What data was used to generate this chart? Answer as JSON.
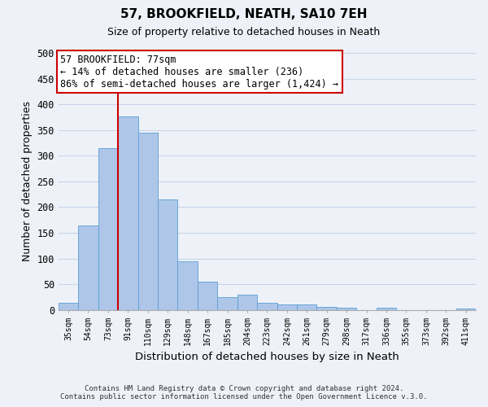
{
  "title": "57, BROOKFIELD, NEATH, SA10 7EH",
  "subtitle": "Size of property relative to detached houses in Neath",
  "xlabel": "Distribution of detached houses by size in Neath",
  "ylabel": "Number of detached properties",
  "bin_labels": [
    "35sqm",
    "54sqm",
    "73sqm",
    "91sqm",
    "110sqm",
    "129sqm",
    "148sqm",
    "167sqm",
    "185sqm",
    "204sqm",
    "223sqm",
    "242sqm",
    "261sqm",
    "279sqm",
    "298sqm",
    "317sqm",
    "336sqm",
    "355sqm",
    "373sqm",
    "392sqm",
    "411sqm"
  ],
  "bar_heights": [
    14,
    165,
    315,
    377,
    345,
    215,
    94,
    55,
    25,
    29,
    14,
    11,
    10,
    6,
    4,
    0,
    4,
    0,
    0,
    0,
    3
  ],
  "bar_color": "#aec6e8",
  "bar_edgecolor": "#5a9fd4",
  "vline_bin_index": 2,
  "vline_color": "#cc0000",
  "annotation_title": "57 BROOKFIELD: 77sqm",
  "annotation_line1": "← 14% of detached houses are smaller (236)",
  "annotation_line2": "86% of semi-detached houses are larger (1,424) →",
  "annotation_box_edgecolor": "#cc0000",
  "ylim": [
    0,
    500
  ],
  "yticks": [
    0,
    50,
    100,
    150,
    200,
    250,
    300,
    350,
    400,
    450,
    500
  ],
  "footer_line1": "Contains HM Land Registry data © Crown copyright and database right 2024.",
  "footer_line2": "Contains public sector information licensed under the Open Government Licence v.3.0.",
  "background_color": "#eef2f8",
  "grid_color": "#d8e2f0"
}
